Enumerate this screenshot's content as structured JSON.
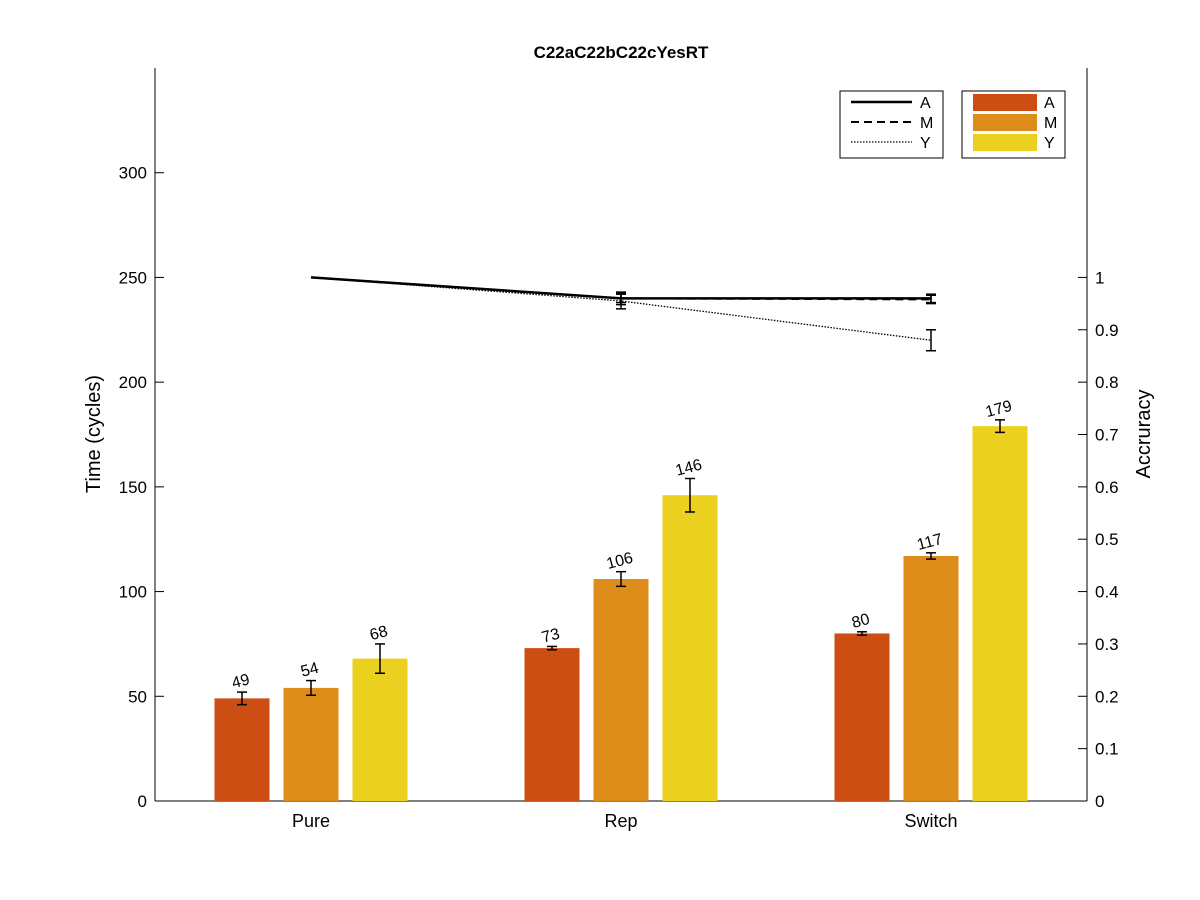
{
  "chart_data": {
    "type": "bar",
    "title": "C22aC22bC22cYesRT",
    "ylabel": "Time (cycles)",
    "y2label": "Accruracy",
    "categories": [
      "Pure",
      "Rep",
      "Switch"
    ],
    "ylim": [
      0,
      350
    ],
    "y2lim": [
      0,
      1.4
    ],
    "yticks": [
      0,
      50,
      100,
      150,
      200,
      250,
      300
    ],
    "y2ticks": [
      0,
      0.1,
      0.2,
      0.3,
      0.4,
      0.5,
      0.6,
      0.7,
      0.8,
      0.9,
      1
    ],
    "series": [
      {
        "name": "A",
        "color": "#cc4e12",
        "values": [
          49,
          73,
          80
        ],
        "errors": [
          3,
          0.8,
          0.8
        ],
        "labels": [
          "49",
          "73",
          "80"
        ]
      },
      {
        "name": "M",
        "color": "#de8c1a",
        "values": [
          54,
          106,
          117
        ],
        "errors": [
          3.5,
          3.5,
          1.5
        ],
        "labels": [
          "54",
          "106",
          "117"
        ]
      },
      {
        "name": "Y",
        "color": "#ebd020",
        "values": [
          68,
          146,
          179
        ],
        "errors": [
          7,
          8,
          3
        ],
        "labels": [
          "68",
          "146",
          "179"
        ]
      }
    ],
    "accuracy_series": [
      {
        "name": "A",
        "dash": "solid",
        "values": [
          1.0,
          0.96,
          0.96
        ],
        "errors": [
          0,
          0.008,
          0.008
        ]
      },
      {
        "name": "M",
        "dash": "dashed",
        "values": [
          1.0,
          0.96,
          0.958
        ],
        "errors": [
          0,
          0.012,
          0.008
        ]
      },
      {
        "name": "Y",
        "dash": "dotted",
        "values": [
          1.0,
          0.955,
          0.88
        ],
        "errors": [
          0,
          0.015,
          0.02
        ]
      }
    ],
    "legend_position": "top-right",
    "grid": false
  }
}
